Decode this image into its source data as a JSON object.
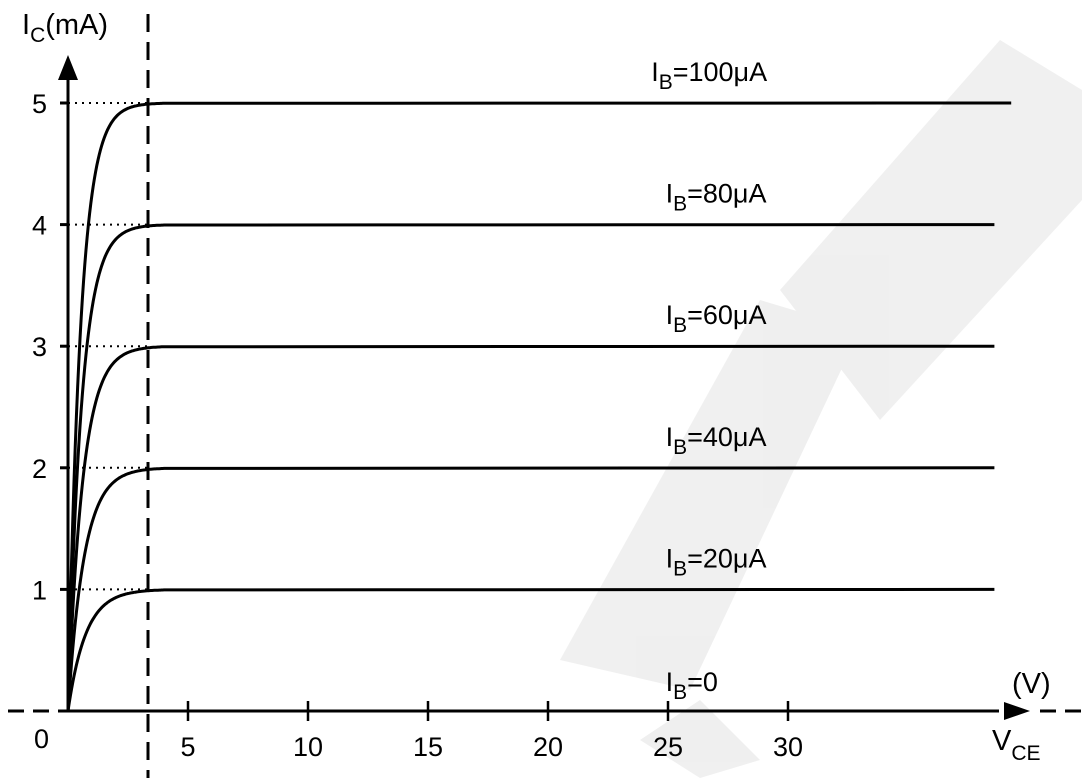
{
  "chart_data": {
    "type": "line",
    "xlabel": "V",
    "xlabel_sub": "CE",
    "x_unit": "(V)",
    "ylabel": "I",
    "ylabel_sub": "C",
    "ylabel_unit": "(mA)",
    "origin_label": "0",
    "xlim": [
      -2.5,
      40
    ],
    "ylim": [
      0,
      5.5
    ],
    "x_ticks": [
      5,
      10,
      15,
      20,
      25,
      30
    ],
    "y_ticks": [
      1,
      2,
      3,
      4,
      5
    ],
    "saturation_vce": 3.4,
    "series": [
      {
        "name": "IB=100μA",
        "label_main": "I",
        "label_sub": "B",
        "label_rest": "=100μA",
        "ic": 5,
        "x_end": 39.3
      },
      {
        "name": "IB=80μA",
        "label_main": "I",
        "label_sub": "B",
        "label_rest": "=80μA",
        "ic": 4,
        "x_end": 38.6
      },
      {
        "name": "IB=60μA",
        "label_main": "I",
        "label_sub": "B",
        "label_rest": "=60μA",
        "ic": 3,
        "x_end": 38.6
      },
      {
        "name": "IB=40μA",
        "label_main": "I",
        "label_sub": "B",
        "label_rest": "=40μA",
        "ic": 2,
        "x_end": 38.6
      },
      {
        "name": "IB=20μA",
        "label_main": "I",
        "label_sub": "B",
        "label_rest": "=20μA",
        "ic": 1,
        "x_end": 38.6
      },
      {
        "name": "IB=0",
        "label_main": "I",
        "label_sub": "B",
        "label_rest": "=0",
        "ic": 0,
        "x_end": 38.6
      }
    ],
    "grid": false,
    "dashed_lines": [
      "x-axis",
      "V_CE saturation boundary"
    ],
    "dotted_guides": true
  },
  "colors": {
    "ink": "#000000",
    "watermark": "#e6e6e6"
  }
}
